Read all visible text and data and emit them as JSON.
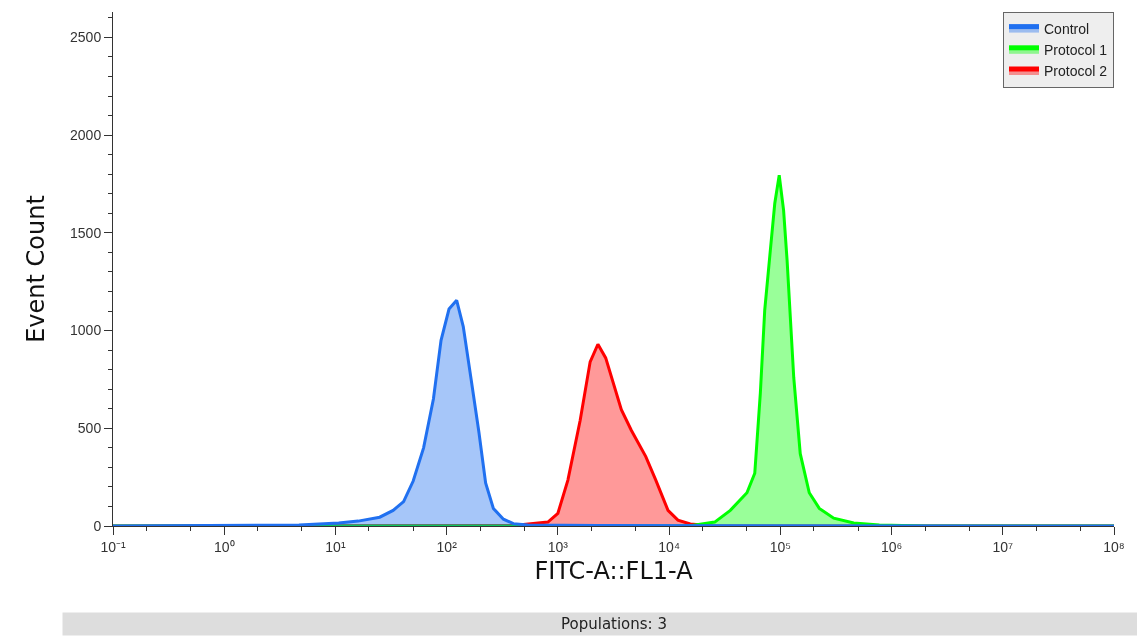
{
  "chart_data": {
    "type": "area",
    "xlabel": "FITC-A::FL1-A",
    "ylabel": "Event Count",
    "log": "x",
    "legend": "top right",
    "marker": "none",
    "line_style": "solid",
    "xlim": [
      0.1,
      100000000
    ],
    "xticks": [
      {
        "value": 0.1,
        "label": "10⁻¹"
      },
      {
        "value": 1,
        "label": "10⁰"
      },
      {
        "value": 10,
        "label": "10¹"
      },
      {
        "value": 100,
        "label": "10²"
      },
      {
        "value": 1000,
        "label": "10³"
      },
      {
        "value": 10000,
        "label": "10⁴"
      },
      {
        "value": 100000,
        "label": "10⁵"
      },
      {
        "value": 1000000,
        "label": "10⁶"
      },
      {
        "value": 10000000,
        "label": "10⁷"
      },
      {
        "value": 100000000,
        "label": "10⁸"
      }
    ],
    "ylim": [
      0,
      2630
    ],
    "yticks": [
      0,
      500,
      1000,
      1500,
      2000,
      2500
    ],
    "series": [
      {
        "name": "Control",
        "color": "#2070f0",
        "x": [
          0.1,
          4.7,
          10.7,
          16,
          25,
          33,
          41,
          50,
          62,
          76,
          89,
          105,
          123,
          141,
          166,
          195,
          224,
          263,
          324,
          398,
          537,
          2290,
          100000000
        ],
        "values": [
          0,
          5,
          15,
          25,
          45,
          80,
          125,
          230,
          400,
          650,
          950,
          1110,
          1155,
          1020,
          750,
          480,
          220,
          90,
          35,
          12,
          5,
          2,
          0
        ]
      },
      {
        "name": "Protocol 1",
        "color": "#00ff00",
        "x": [
          0.1,
          15000,
          25700,
          35500,
          50100,
          58900,
          66100,
          72400,
          81300,
          89100,
          97700,
          107000,
          115000,
          132000,
          151000,
          182000,
          224000,
          302000,
          457000,
          776000,
          2000000,
          100000000
        ],
        "values": [
          0,
          0,
          20,
          80,
          170,
          270,
          680,
          1105,
          1410,
          1650,
          1795,
          1615,
          1360,
          760,
          370,
          170,
          90,
          40,
          15,
          5,
          0,
          0
        ]
      },
      {
        "name": "Protocol 2",
        "color": "#ff0000",
        "x": [
          0.1,
          400,
          813,
          1000,
          1230,
          1585,
          1950,
          2290,
          2690,
          3720,
          4570,
          6170,
          7590,
          9770,
          12000,
          15500,
          25000,
          100000000
        ],
        "values": [
          0,
          2,
          20,
          65,
          235,
          540,
          840,
          930,
          860,
          595,
          490,
          355,
          235,
          80,
          30,
          10,
          0,
          0
        ]
      }
    ],
    "annotations": [
      "Populations: 3"
    ]
  }
}
